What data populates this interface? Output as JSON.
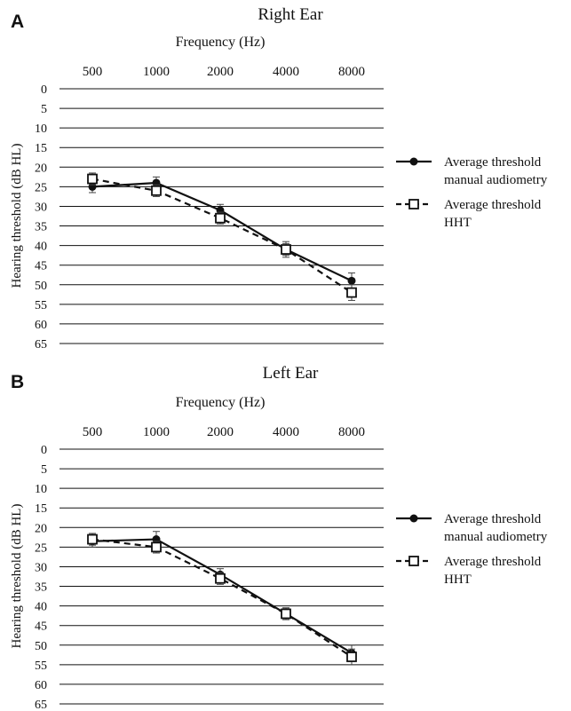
{
  "chart_data": [
    {
      "panel_label": "A",
      "type": "line",
      "title": "Right Ear",
      "xlabel": "Frequency (Hz)",
      "ylabel": "Hearing threshold (dB HL)",
      "categories": [
        "500",
        "1000",
        "2000",
        "4000",
        "8000"
      ],
      "y_ticks": [
        "0",
        "5",
        "10",
        "15",
        "20",
        "25",
        "30",
        "35",
        "40",
        "45",
        "50",
        "55",
        "60",
        "65"
      ],
      "ylim": [
        0,
        65
      ],
      "y_inverted": true,
      "x_axis_position": "top",
      "grid": true,
      "legend_position": "right",
      "series": [
        {
          "name": "Average threshold manual audiometry",
          "legend_lines": [
            "Average threshold",
            "manual audiometry"
          ],
          "marker": "filled-circle",
          "line_style": "solid",
          "values": [
            25,
            24,
            31,
            41,
            49
          ],
          "error": [
            1.5,
            1.5,
            1.5,
            1.5,
            2
          ]
        },
        {
          "name": "Average threshold HHT",
          "legend_lines": [
            "Average threshold",
            "HHT"
          ],
          "marker": "open-square",
          "line_style": "dashed",
          "values": [
            23,
            26,
            33,
            41,
            52
          ],
          "error": [
            1.5,
            1.5,
            1.5,
            2,
            2
          ]
        }
      ]
    },
    {
      "panel_label": "B",
      "type": "line",
      "title": "Left Ear",
      "xlabel": "Frequency (Hz)",
      "ylabel": "Hearing threshold (dB HL)",
      "categories": [
        "500",
        "1000",
        "2000",
        "4000",
        "8000"
      ],
      "y_ticks": [
        "0",
        "5",
        "10",
        "15",
        "20",
        "25",
        "30",
        "35",
        "40",
        "45",
        "50",
        "55",
        "60",
        "65"
      ],
      "ylim": [
        0,
        65
      ],
      "y_inverted": true,
      "x_axis_position": "top",
      "grid": true,
      "legend_position": "right",
      "series": [
        {
          "name": "Average threshold manual audiometry",
          "legend_lines": [
            "Average threshold",
            "manual audiometry"
          ],
          "marker": "filled-circle",
          "line_style": "solid",
          "values": [
            23.5,
            23,
            32,
            42,
            52
          ],
          "error": [
            1.5,
            2,
            1.5,
            1.5,
            2
          ]
        },
        {
          "name": "Average threshold HHT",
          "legend_lines": [
            "Average threshold",
            "HHT"
          ],
          "marker": "open-square",
          "line_style": "dashed",
          "values": [
            23,
            25,
            33,
            42,
            53
          ],
          "error": [
            1.5,
            1.5,
            1.5,
            1.5,
            2
          ]
        }
      ]
    }
  ]
}
